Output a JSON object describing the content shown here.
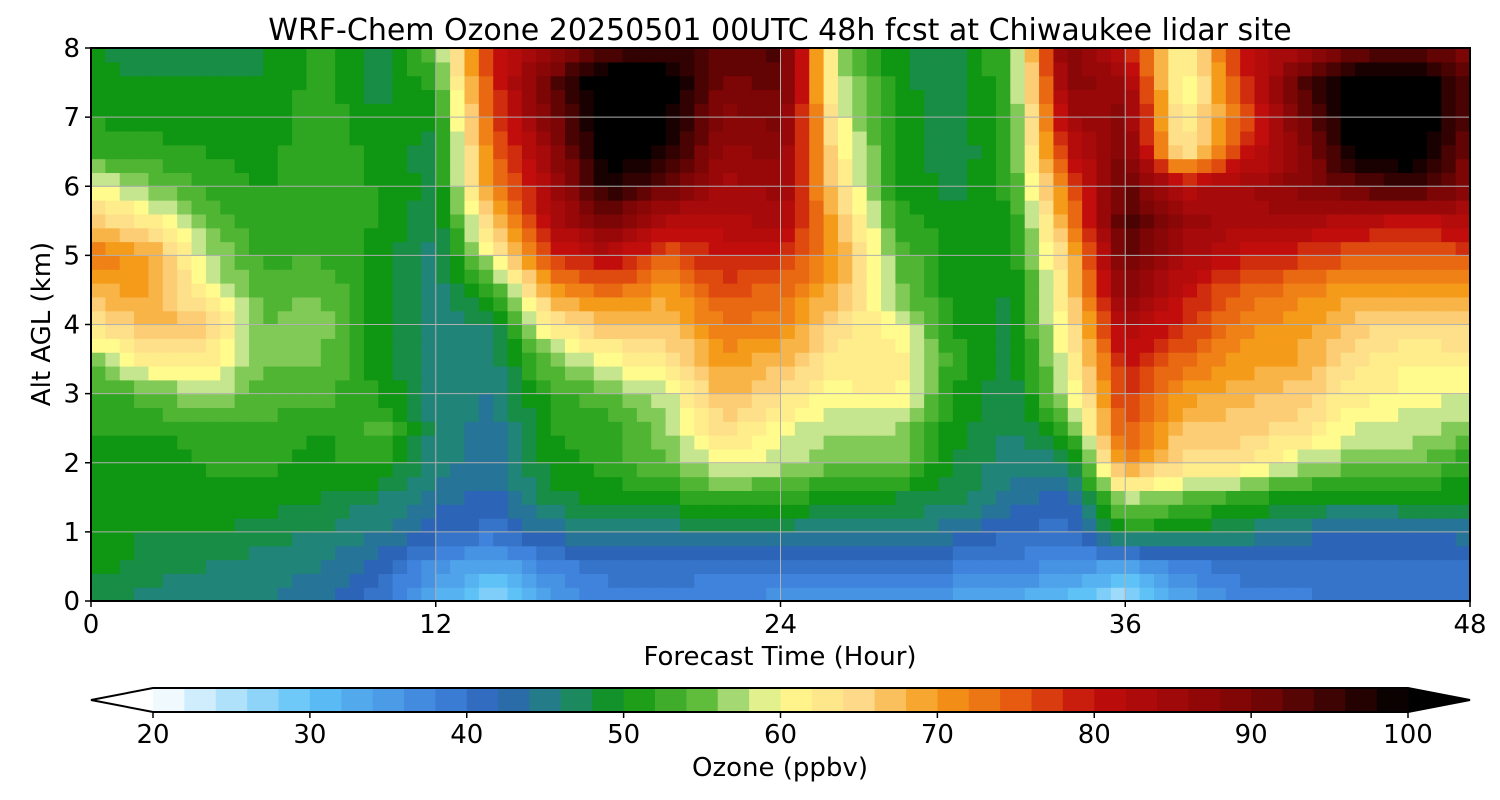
{
  "chart_data": {
    "type": "heatmap",
    "title": "WRF-Chem Ozone  20250501 00UTC 48h fcst at Chiwaukee lidar site",
    "xlabel": "Forecast Time (Hour)",
    "ylabel": "Alt AGL (km)",
    "xlim": [
      0,
      48
    ],
    "ylim": [
      0,
      8
    ],
    "xticks": [
      0,
      12,
      24,
      36,
      48
    ],
    "yticks": [
      0,
      1,
      2,
      3,
      4,
      5,
      6,
      7,
      8
    ],
    "grid": true,
    "x": [
      0,
      2,
      4,
      6,
      8,
      10,
      12,
      14,
      16,
      18,
      20,
      22,
      24,
      26,
      28,
      30,
      32,
      34,
      36,
      38,
      40,
      42,
      44,
      46,
      48
    ],
    "y": [
      0,
      0.5,
      1,
      1.5,
      2,
      2.5,
      3,
      3.5,
      4,
      4.5,
      5,
      5.5,
      6,
      6.5,
      7,
      7.5,
      8
    ],
    "z": [
      [
        48,
        46,
        45,
        45,
        44,
        40,
        33,
        26,
        34,
        38,
        38,
        37,
        36,
        34,
        35,
        34,
        33,
        30,
        24,
        33,
        38,
        38,
        40,
        40,
        41
      ],
      [
        50,
        48,
        47,
        46,
        45,
        42,
        36,
        33,
        38,
        40,
        40,
        40,
        40,
        39,
        40,
        39,
        38,
        36,
        34,
        38,
        40,
        40,
        40,
        40,
        40
      ],
      [
        50,
        49,
        49,
        48,
        47,
        45,
        42,
        40,
        44,
        45,
        46,
        46,
        46,
        45,
        45,
        44,
        41,
        40,
        50,
        49,
        47,
        44,
        43,
        43,
        44
      ],
      [
        50,
        50,
        51,
        50,
        49,
        47,
        44,
        42,
        48,
        50,
        50,
        53,
        52,
        50,
        49,
        48,
        44,
        42,
        58,
        55,
        52,
        50,
        49,
        50,
        49
      ],
      [
        51,
        50,
        51,
        52,
        50,
        52,
        46,
        44,
        50,
        52,
        55,
        60,
        58,
        55,
        56,
        49,
        46,
        46,
        72,
        64,
        64,
        58,
        56,
        56,
        51
      ],
      [
        51,
        51,
        52,
        53,
        51,
        54,
        46,
        44,
        51,
        52,
        56,
        64,
        60,
        57,
        57,
        50,
        47,
        52,
        76,
        67,
        66,
        64,
        59,
        58,
        56
      ],
      [
        52,
        54,
        58,
        54,
        54,
        51,
        46,
        45,
        52,
        55,
        58,
        68,
        64,
        60,
        62,
        51,
        47,
        58,
        78,
        70,
        68,
        66,
        62,
        60,
        59
      ],
      [
        56,
        62,
        62,
        55,
        55,
        50,
        46,
        46,
        56,
        60,
        63,
        70,
        68,
        62,
        63,
        52,
        48,
        60,
        80,
        74,
        70,
        69,
        64,
        61,
        62
      ],
      [
        63,
        68,
        66,
        55,
        56,
        50,
        46,
        47,
        62,
        67,
        66,
        73,
        72,
        64,
        60,
        51,
        48,
        62,
        84,
        78,
        72,
        70,
        66,
        64,
        66
      ],
      [
        68,
        70,
        60,
        54,
        55,
        50,
        46,
        52,
        70,
        74,
        70,
        76,
        74,
        68,
        56,
        50,
        49,
        64,
        88,
        80,
        75,
        72,
        70,
        70,
        70
      ],
      [
        73,
        70,
        58,
        52,
        53,
        50,
        46,
        60,
        78,
        82,
        75,
        80,
        78,
        70,
        55,
        50,
        49,
        66,
        92,
        84,
        80,
        78,
        75,
        75,
        76
      ],
      [
        66,
        62,
        55,
        51,
        52,
        51,
        47,
        66,
        82,
        90,
        82,
        82,
        84,
        68,
        52,
        50,
        50,
        70,
        94,
        86,
        84,
        84,
        82,
        80,
        82
      ],
      [
        60,
        56,
        52,
        51,
        52,
        51,
        48,
        72,
        84,
        98,
        92,
        84,
        86,
        64,
        51,
        48,
        52,
        74,
        92,
        82,
        84,
        88,
        92,
        96,
        88
      ],
      [
        52,
        52,
        51,
        50,
        53,
        50,
        48,
        74,
        86,
        102,
        98,
        86,
        88,
        62,
        51,
        47,
        52,
        80,
        90,
        62,
        78,
        86,
        100,
        102,
        90
      ],
      [
        51,
        50,
        50,
        49,
        53,
        49,
        50,
        76,
        90,
        102,
        100,
        88,
        90,
        60,
        51,
        47,
        53,
        84,
        88,
        60,
        74,
        90,
        102,
        104,
        92
      ],
      [
        50,
        49,
        49,
        49,
        52,
        48,
        52,
        78,
        92,
        104,
        102,
        90,
        92,
        58,
        50,
        47,
        53,
        88,
        86,
        58,
        76,
        92,
        102,
        104,
        92
      ],
      [
        49,
        48,
        48,
        49,
        52,
        48,
        56,
        80,
        86,
        92,
        96,
        92,
        94,
        56,
        50,
        47,
        54,
        90,
        80,
        60,
        80,
        84,
        90,
        92,
        90
      ]
    ],
    "colorbar": {
      "label": "Ozone  (ppbv)",
      "ticks": [
        20,
        30,
        40,
        50,
        60,
        70,
        80,
        90,
        100
      ],
      "vmin": 20,
      "vmax": 100,
      "extend": "both",
      "stops": [
        {
          "v": 20,
          "color": "#ffffff"
        },
        {
          "v": 30,
          "color": "#5ec2f7"
        },
        {
          "v": 38,
          "color": "#3f83dc"
        },
        {
          "v": 42,
          "color": "#2c64b8"
        },
        {
          "v": 46,
          "color": "#208478"
        },
        {
          "v": 50,
          "color": "#0f9612"
        },
        {
          "v": 55,
          "color": "#5fbd3b"
        },
        {
          "v": 58,
          "color": "#c5e58f"
        },
        {
          "v": 60,
          "color": "#fffb8c"
        },
        {
          "v": 65,
          "color": "#fed98a"
        },
        {
          "v": 70,
          "color": "#f59b1a"
        },
        {
          "v": 75,
          "color": "#e65b10"
        },
        {
          "v": 80,
          "color": "#c20d0d"
        },
        {
          "v": 90,
          "color": "#7c0505"
        },
        {
          "v": 100,
          "color": "#000000"
        }
      ]
    }
  }
}
